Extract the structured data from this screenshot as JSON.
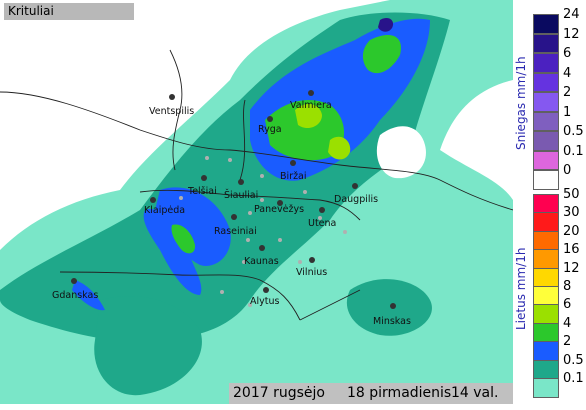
{
  "header": {
    "title": "Krituliai"
  },
  "footer": {
    "year_month": "2017 rugsėjo",
    "day": "18 pirmadienis",
    "hour": "14 val."
  },
  "snow_legend": {
    "title": "Sniegas mm/1h",
    "classes": [
      {
        "label": "24",
        "color": "#0a0a60"
      },
      {
        "label": "12",
        "color": "#28138a"
      },
      {
        "label": "6",
        "color": "#4b21c0"
      },
      {
        "label": "4",
        "color": "#6533e0"
      },
      {
        "label": "2",
        "color": "#8558f0"
      },
      {
        "label": "1",
        "color": "#7f5fbf"
      },
      {
        "label": "0.5",
        "color": "#7a5ab0"
      },
      {
        "label": "0.1",
        "color": "#dd66dd"
      },
      {
        "label": "0",
        "color": "#ffffff"
      }
    ]
  },
  "rain_legend": {
    "title": "Lietus mm/1h",
    "classes": [
      {
        "label": "50",
        "color": "#ff0050"
      },
      {
        "label": "30",
        "color": "#ff1a1a"
      },
      {
        "label": "20",
        "color": "#ff6a00"
      },
      {
        "label": "16",
        "color": "#ff9900"
      },
      {
        "label": "12",
        "color": "#ffd800"
      },
      {
        "label": "8",
        "color": "#ffff3a"
      },
      {
        "label": "6",
        "color": "#9be000"
      },
      {
        "label": "4",
        "color": "#2cc82c"
      },
      {
        "label": "2",
        "color": "#1a5cff"
      },
      {
        "label": "0.5",
        "color": "#1fa88a"
      },
      {
        "label": "0.1",
        "color": "#7ae6c8"
      }
    ]
  },
  "cities": [
    {
      "name": "Ventspilis"
    },
    {
      "name": "Valmiera"
    },
    {
      "name": "Ryga"
    },
    {
      "name": "Biržai"
    },
    {
      "name": "Telšiai"
    },
    {
      "name": "Šiauliai"
    },
    {
      "name": "Klaipėda"
    },
    {
      "name": "Panevėžys"
    },
    {
      "name": "Daugpilis"
    },
    {
      "name": "Utena"
    },
    {
      "name": "Raseiniai"
    },
    {
      "name": "Kaunas"
    },
    {
      "name": "Vilnius"
    },
    {
      "name": "Gdanskas"
    },
    {
      "name": "Alytus"
    },
    {
      "name": "Minskas"
    }
  ],
  "colors": {
    "sea": "#ffffff",
    "land_light": "#7ae6c8",
    "land_mid": "#1fa88a"
  }
}
